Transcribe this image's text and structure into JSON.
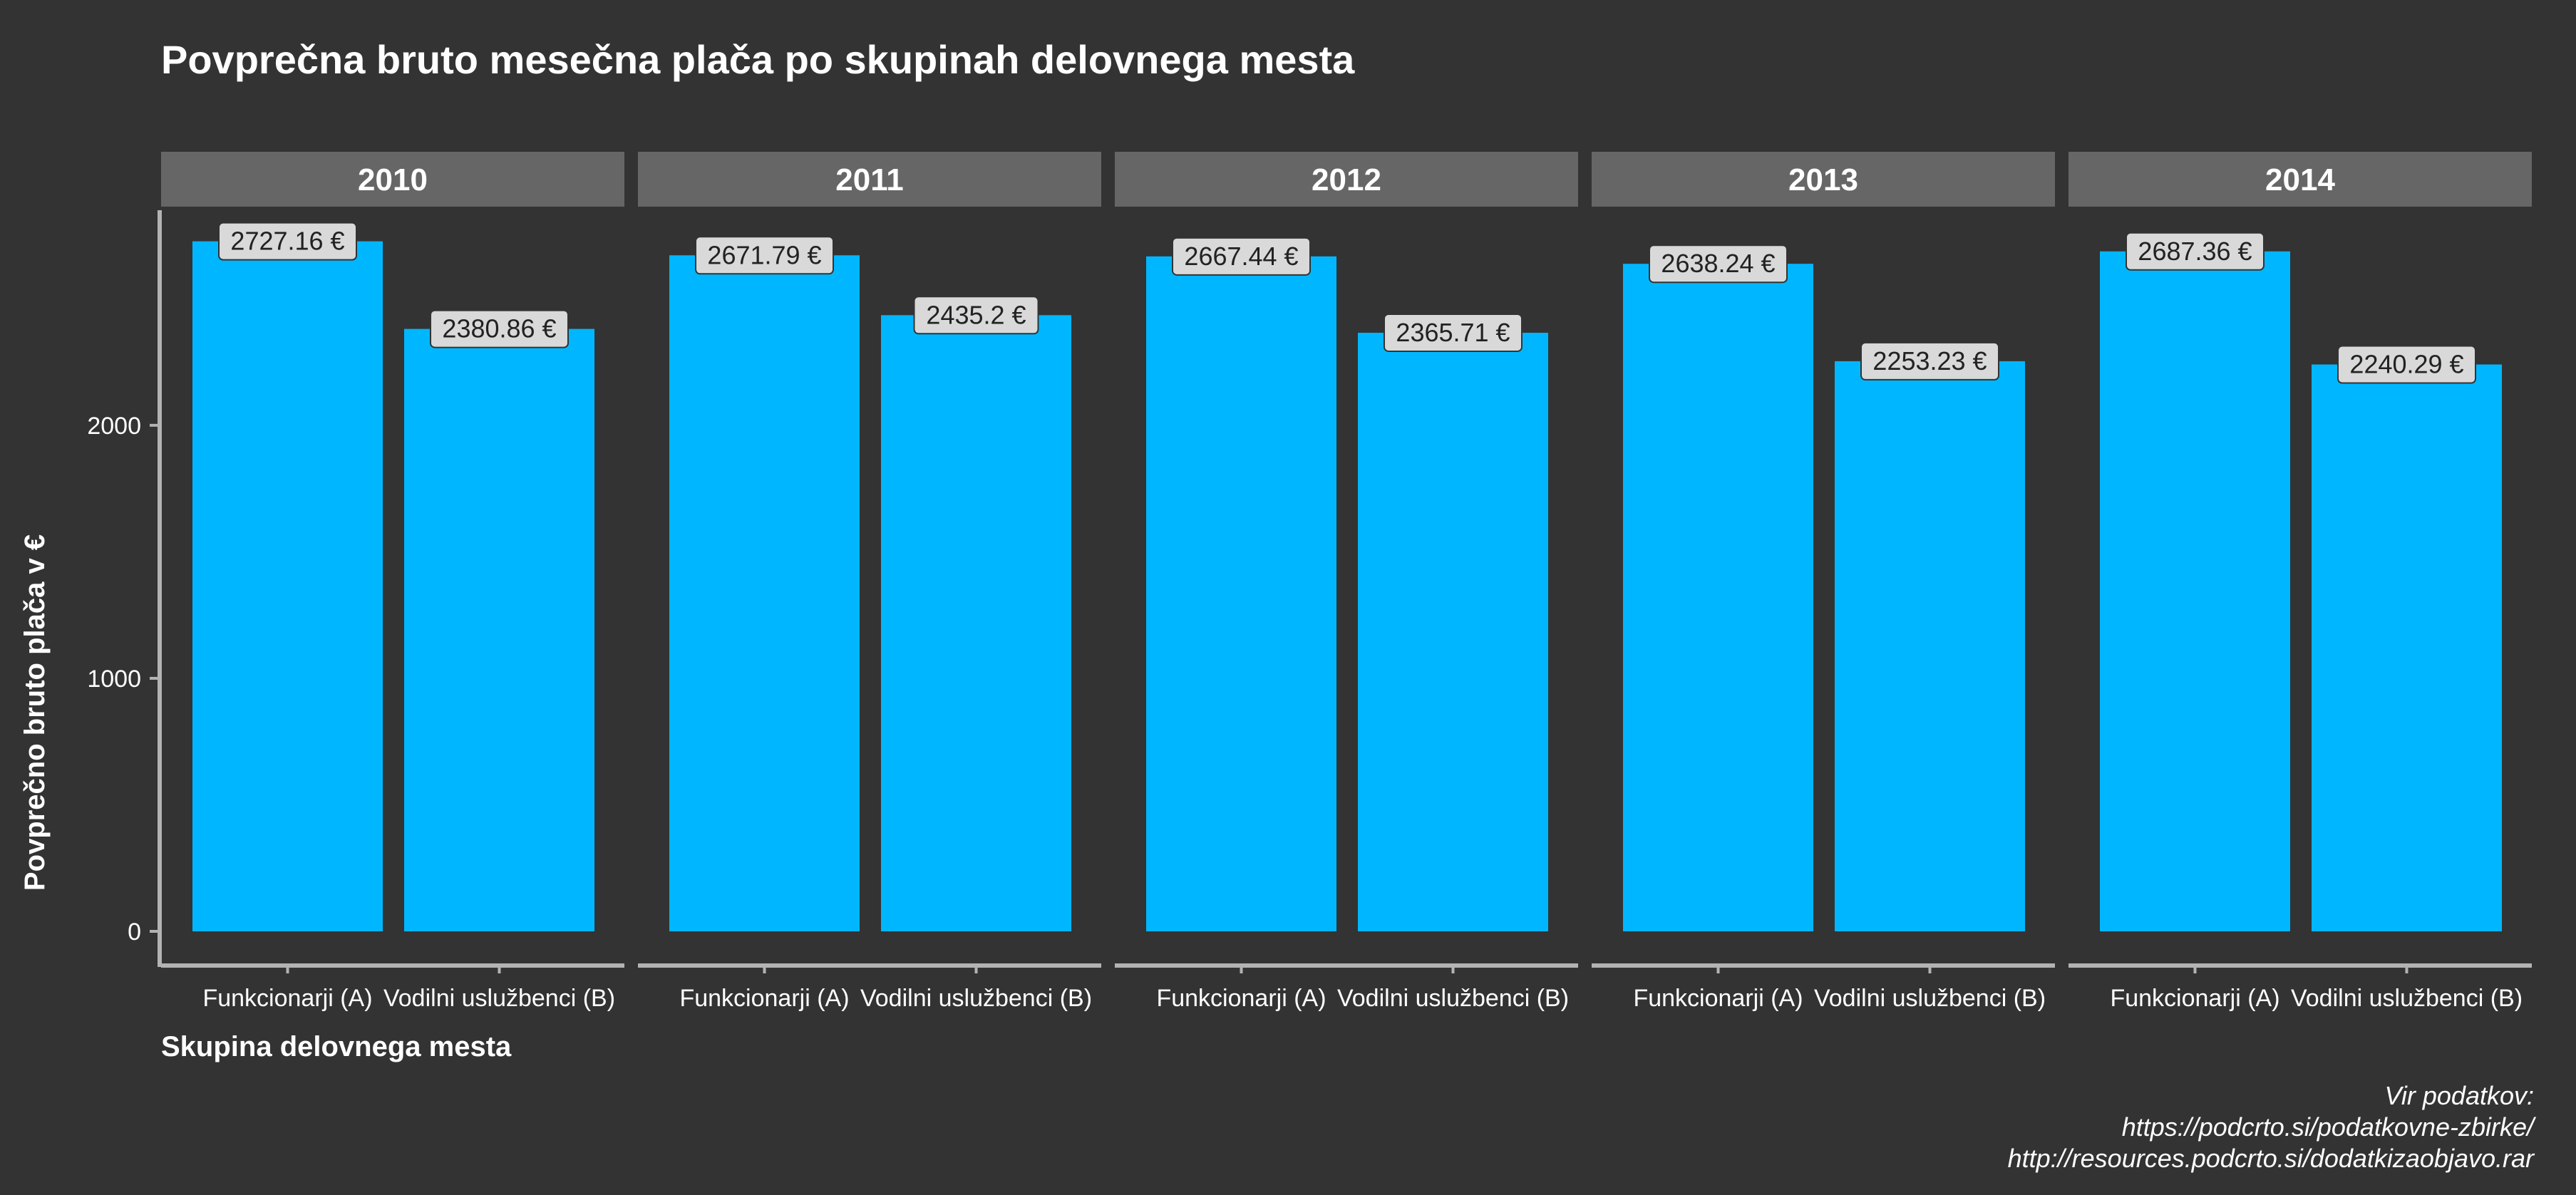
{
  "chart_data": {
    "type": "bar",
    "title": "Povprečna bruto mesečna plača po skupinah delovnega mesta",
    "xlabel": "Skupina delovnega mesta",
    "ylabel": "Povprečno bruto plača v €",
    "ylim": [
      0,
      2850
    ],
    "yticks": [
      0,
      1000,
      2000
    ],
    "categories": [
      "Funkcionarji (A)",
      "Vodilni uslužbenci (B)"
    ],
    "facets": [
      {
        "label": "2010",
        "values": [
          2727.16,
          2380.86
        ],
        "data_labels": [
          "2727.16 €",
          "2380.86 €"
        ]
      },
      {
        "label": "2011",
        "values": [
          2671.79,
          2435.2
        ],
        "data_labels": [
          "2671.79 €",
          "2435.2 €"
        ]
      },
      {
        "label": "2012",
        "values": [
          2667.44,
          2365.71
        ],
        "data_labels": [
          "2667.44 €",
          "2365.71 €"
        ]
      },
      {
        "label": "2013",
        "values": [
          2638.24,
          2253.23
        ],
        "data_labels": [
          "2638.24 €",
          "2253.23 €"
        ]
      },
      {
        "label": "2014",
        "values": [
          2687.36,
          2240.29
        ],
        "data_labels": [
          "2687.36 €",
          "2240.29 €"
        ]
      }
    ],
    "grid": false,
    "legend": "none",
    "caption_lines": [
      "Vir podatkov:",
      "https://podcrto.si/podatkovne-zbirke/",
      "http://resources.podcrto.si/dodatkizaobjavo.rar"
    ],
    "colors": {
      "background": "#333333",
      "bar": "#00b7ff",
      "strip": "#666666",
      "axis": "#b3b3b3",
      "label_fill": "#d9d9d9"
    }
  }
}
